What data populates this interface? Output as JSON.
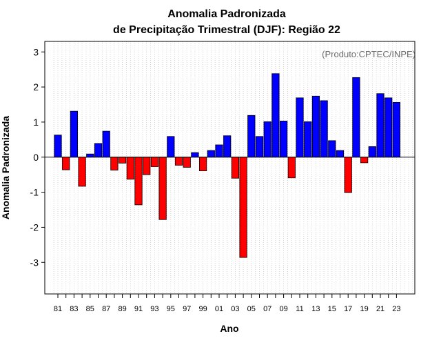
{
  "chart_data": {
    "type": "bar",
    "title": "Anomalia Padronizada",
    "subtitle": "de Precipitação Trimestral (DJF): Região 22",
    "xlabel": "Ano",
    "ylabel": "Anomalia Padronizada",
    "annotation": "(Produto:CPTEC/INPE)",
    "ylim": [
      -3.9,
      3.3
    ],
    "yticks": [
      -3,
      -2,
      -1,
      0,
      1,
      2,
      3
    ],
    "x_tick_labels": [
      "81",
      "83",
      "85",
      "87",
      "89",
      "91",
      "93",
      "95",
      "97",
      "99",
      "01",
      "03",
      "05",
      "07",
      "09",
      "11",
      "13",
      "15",
      "17",
      "19",
      "21",
      "23"
    ],
    "categories": [
      1981,
      1982,
      1983,
      1984,
      1985,
      1986,
      1987,
      1988,
      1989,
      1990,
      1991,
      1992,
      1993,
      1994,
      1995,
      1996,
      1997,
      1998,
      1999,
      2000,
      2001,
      2002,
      2003,
      2004,
      2005,
      2006,
      2007,
      2008,
      2009,
      2010,
      2011,
      2012,
      2013,
      2014,
      2015,
      2016,
      2017,
      2018,
      2019,
      2020,
      2021,
      2022,
      2023
    ],
    "values": [
      0.63,
      -0.36,
      1.31,
      -0.83,
      0.09,
      0.39,
      0.74,
      -0.37,
      -0.17,
      -0.63,
      -1.36,
      -0.5,
      -0.27,
      -1.78,
      0.59,
      -0.23,
      -0.29,
      0.13,
      -0.39,
      0.19,
      0.35,
      0.61,
      -0.6,
      -2.86,
      1.19,
      0.59,
      1.01,
      2.38,
      1.03,
      -0.59,
      1.69,
      1.01,
      1.74,
      1.61,
      0.47,
      0.19,
      -1.01,
      2.27,
      -0.16,
      0.3,
      1.81,
      1.69,
      1.56
    ],
    "colors": {
      "positive": "#0000ff",
      "negative": "#ff0000",
      "bar_border": "#000000",
      "grid": "#c8c8c8"
    },
    "grid": true,
    "x_grid_step": 0.5
  }
}
